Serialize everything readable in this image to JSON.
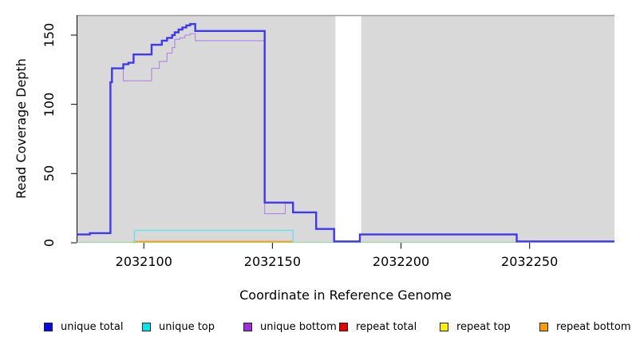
{
  "figure": {
    "y_axis_title": "Read Coverage Depth",
    "x_axis_title": "Coordinate in Reference Genome"
  },
  "axes": {
    "x": {
      "tick_values": [
        2032100,
        2032150,
        2032200,
        2032250
      ],
      "tick_labels": [
        "2032100",
        "2032150",
        "2032200",
        "2032250"
      ]
    },
    "y": {
      "tick_values": [
        0,
        50,
        100,
        150
      ],
      "tick_labels": [
        "0",
        "50",
        "100",
        "150"
      ]
    }
  },
  "legend": {
    "items": [
      {
        "label": "unique total",
        "color": "#0808e8"
      },
      {
        "label": "unique top",
        "color": "#00e6f0"
      },
      {
        "label": "unique bottom",
        "color": "#9b30dd"
      },
      {
        "label": "repeat total",
        "color": "#e80000"
      },
      {
        "label": "repeat top",
        "color": "#fff000"
      },
      {
        "label": "repeat bottom",
        "color": "#ff9d00"
      }
    ]
  },
  "chart_data": {
    "type": "line",
    "title": "",
    "xlabel": "Coordinate in Reference Genome",
    "ylabel": "Read Coverage Depth",
    "xlim": [
      2032074,
      2032283
    ],
    "ylim": [
      0,
      164.4
    ],
    "x_ticks": [
      2032100,
      2032150,
      2032200,
      2032250
    ],
    "y_ticks": [
      0,
      50,
      100,
      150
    ],
    "grid": false,
    "legend_position": "bottom",
    "background": "#d9d9d9",
    "gap_region": {
      "x_start": 2032174.5,
      "x_end": 2032184.5,
      "color": "#ffffff"
    },
    "series": [
      {
        "name": "baseline-overlap",
        "legend_label": null,
        "visible": true,
        "color": "#a5d5a5",
        "line_width": 1.2,
        "x_end": 2032245,
        "points": [
          [
            2032074,
            0.3
          ]
        ]
      },
      {
        "name": "repeat-bottom",
        "legend_label": "repeat bottom",
        "visible": true,
        "color": "#ff9d00",
        "line_width": 1.6,
        "x_end": 2032158,
        "points": [
          [
            2032096,
            0.9
          ]
        ]
      },
      {
        "name": "repeat-total",
        "legend_label": "repeat total",
        "visible": false,
        "color": "#e80000",
        "line_width": 1,
        "x_end": 2032245,
        "points": [
          [
            2032074,
            0
          ]
        ]
      },
      {
        "name": "repeat-top",
        "legend_label": "repeat top",
        "visible": false,
        "color": "#fff000",
        "line_width": 1,
        "x_end": 2032245,
        "points": [
          [
            2032074,
            0
          ]
        ]
      },
      {
        "name": "unique-top",
        "legend_label": "unique top",
        "visible": true,
        "color": "#5ee6ef",
        "line_width": 1.4,
        "x_end": 2032158,
        "points": [
          [
            2032096,
            0
          ],
          [
            2032096.3,
            9
          ],
          [
            2032158,
            0
          ]
        ]
      },
      {
        "name": "unique-bottom",
        "legend_label": "unique bottom",
        "visible": true,
        "color": "#b184e3",
        "line_width": 1.1,
        "x_end": 2032283,
        "points": [
          [
            2032074,
            6
          ],
          [
            2032079,
            7
          ],
          [
            2032087,
            116
          ],
          [
            2032087.6,
            126
          ],
          [
            2032092,
            117
          ],
          [
            2032103,
            126
          ],
          [
            2032106,
            131
          ],
          [
            2032109,
            137
          ],
          [
            2032111,
            141
          ],
          [
            2032112,
            147
          ],
          [
            2032114,
            148
          ],
          [
            2032116,
            150
          ],
          [
            2032118,
            151
          ],
          [
            2032120,
            146
          ],
          [
            2032147,
            21
          ],
          [
            2032155,
            28.5
          ],
          [
            2032158,
            22
          ],
          [
            2032167,
            10
          ],
          [
            2032174,
            1
          ],
          [
            2032184,
            6
          ],
          [
            2032245,
            1
          ]
        ]
      },
      {
        "name": "unique-total",
        "legend_label": "unique total",
        "visible": true,
        "color": "#4038ee",
        "line_width": 2.4,
        "x_end": 2032283,
        "points": [
          [
            2032074,
            6
          ],
          [
            2032079,
            7
          ],
          [
            2032087,
            116
          ],
          [
            2032087.6,
            126
          ],
          [
            2032092,
            129
          ],
          [
            2032094,
            130
          ],
          [
            2032096,
            136
          ],
          [
            2032103,
            143
          ],
          [
            2032107,
            146
          ],
          [
            2032109,
            148
          ],
          [
            2032111,
            150
          ],
          [
            2032112,
            152
          ],
          [
            2032113.5,
            154
          ],
          [
            2032115,
            155.5
          ],
          [
            2032116.5,
            157
          ],
          [
            2032118,
            158
          ],
          [
            2032120,
            153
          ],
          [
            2032147,
            29
          ],
          [
            2032158,
            22
          ],
          [
            2032167,
            10
          ],
          [
            2032174,
            1
          ],
          [
            2032184,
            6
          ],
          [
            2032245,
            1
          ]
        ]
      }
    ]
  }
}
